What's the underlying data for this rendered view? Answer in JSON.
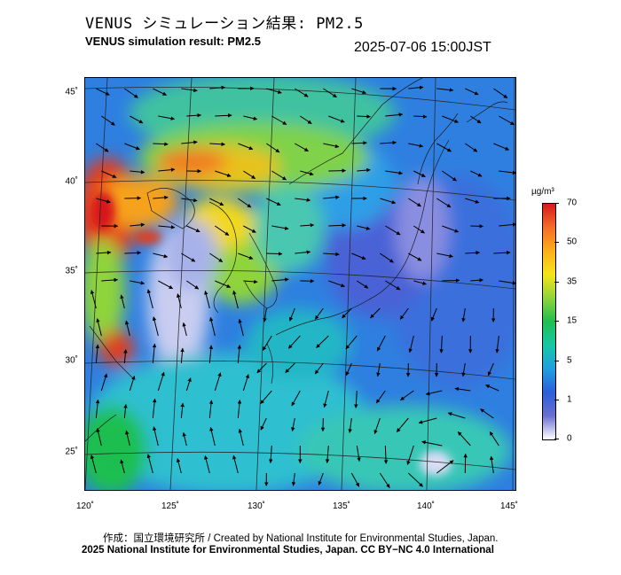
{
  "header": {
    "title_ja": "VENUS シミュレーション結果: PM2.5",
    "title_en": "VENUS simulation result: PM2.5",
    "timestamp": "2025-07-06 15:00JST"
  },
  "map": {
    "lon_range": [
      120,
      145
    ],
    "lat_range": [
      23,
      46
    ],
    "lat_labels": [
      "45˚",
      "40˚",
      "35˚",
      "30˚",
      "25˚"
    ],
    "lon_labels": [
      "120˚",
      "125˚",
      "130˚",
      "135˚",
      "140˚",
      "145˚"
    ]
  },
  "legend": {
    "unit": "µg/m³",
    "ticks": [
      "70",
      "50",
      "35",
      "15",
      "5",
      "1",
      "0"
    ],
    "colors": [
      "#d7191c",
      "#f46d2a",
      "#fdae1a",
      "#f5e51a",
      "#8fd43a",
      "#1fbf4f",
      "#17c7a7",
      "#1f9fe0",
      "#2b5fd9",
      "#6a6fd0",
      "#ffffff"
    ]
  },
  "footer": {
    "credit_line1": "作成：国立環境研究所 / Created by National Institute for Environmental Studies, Japan.",
    "credit_line2": "2025 National Institute for Environmental Studies, Japan. CC BY−NC 4.0 International"
  }
}
